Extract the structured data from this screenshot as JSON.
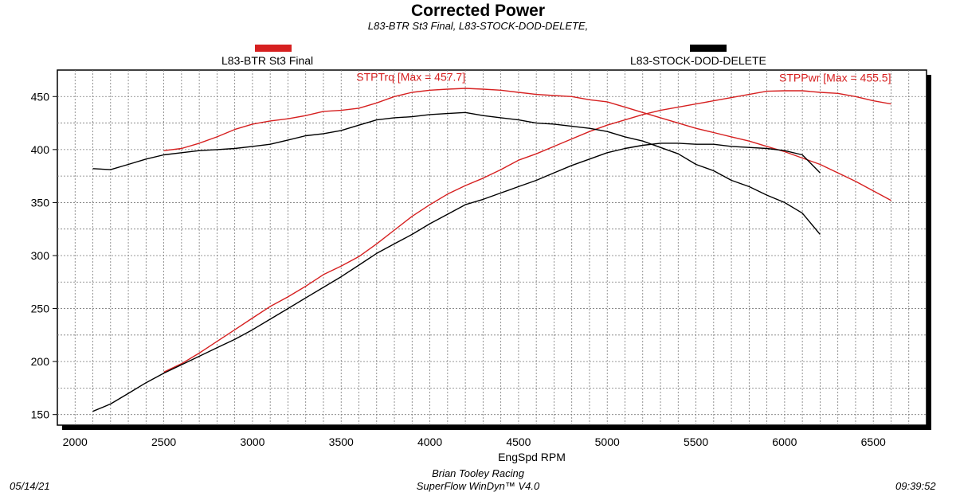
{
  "header": {
    "title": "Corrected Power",
    "subtitle": "L83-BTR St3 Final, L83-STOCK-DOD-DELETE,"
  },
  "footer": {
    "date": "05/14/21",
    "company": "Brian Tooley Racing",
    "software": "SuperFlow WinDyn™  V4.0",
    "time": "09:39:52"
  },
  "colors": {
    "btr": "#d62020",
    "stock": "#000000"
  },
  "chart_data": {
    "type": "line",
    "xlabel": "EngSpd RPM",
    "ylabel": "",
    "xlim": [
      1900,
      6800
    ],
    "ylim": [
      140,
      475
    ],
    "x_ticks": [
      2000,
      2500,
      3000,
      3500,
      4000,
      4500,
      5000,
      5500,
      6000,
      6500
    ],
    "y_ticks": [
      150,
      200,
      250,
      300,
      350,
      400,
      450
    ],
    "grid": true,
    "legend": [
      {
        "name": "L83-BTR St3 Final",
        "color": "#d62020"
      },
      {
        "name": "L83-STOCK-DOD-DELETE",
        "color": "#000000"
      }
    ],
    "annotations": [
      {
        "text": "STPTrq [Max = 457.7]",
        "x": 4200,
        "y": 465,
        "color": "#d62020"
      },
      {
        "text": "STPPwr [Max = 455.5]",
        "x": 6600,
        "y": 464,
        "color": "#d62020"
      }
    ],
    "series": [
      {
        "name": "L83-BTR St3 Final",
        "color": "#d62020",
        "metric": "torque",
        "points": [
          [
            2500,
            399
          ],
          [
            2600,
            401
          ],
          [
            2700,
            406
          ],
          [
            2800,
            412
          ],
          [
            2900,
            419
          ],
          [
            3000,
            424
          ],
          [
            3100,
            427
          ],
          [
            3200,
            429
          ],
          [
            3300,
            432
          ],
          [
            3400,
            436
          ],
          [
            3500,
            437
          ],
          [
            3600,
            439
          ],
          [
            3700,
            444
          ],
          [
            3800,
            450
          ],
          [
            3900,
            454
          ],
          [
            4000,
            456
          ],
          [
            4100,
            457
          ],
          [
            4200,
            457.7
          ],
          [
            4300,
            457
          ],
          [
            4400,
            456
          ],
          [
            4500,
            454
          ],
          [
            4600,
            452
          ],
          [
            4700,
            451
          ],
          [
            4800,
            450
          ],
          [
            4900,
            447
          ],
          [
            5000,
            445
          ],
          [
            5100,
            440
          ],
          [
            5200,
            435
          ],
          [
            5300,
            430
          ],
          [
            5400,
            425
          ],
          [
            5500,
            420
          ],
          [
            5600,
            416
          ],
          [
            5700,
            412
          ],
          [
            5800,
            408
          ],
          [
            5900,
            403
          ],
          [
            6000,
            398
          ],
          [
            6100,
            392
          ],
          [
            6200,
            386
          ],
          [
            6300,
            378
          ],
          [
            6400,
            370
          ],
          [
            6500,
            361
          ],
          [
            6600,
            352
          ]
        ]
      },
      {
        "name": "L83-BTR St3 Final",
        "color": "#d62020",
        "metric": "power",
        "points": [
          [
            2500,
            190
          ],
          [
            2600,
            198
          ],
          [
            2700,
            208
          ],
          [
            2800,
            219
          ],
          [
            2900,
            230
          ],
          [
            3000,
            241
          ],
          [
            3100,
            252
          ],
          [
            3200,
            261
          ],
          [
            3300,
            271
          ],
          [
            3400,
            282
          ],
          [
            3500,
            290
          ],
          [
            3600,
            299
          ],
          [
            3700,
            311
          ],
          [
            3800,
            324
          ],
          [
            3900,
            337
          ],
          [
            4000,
            348
          ],
          [
            4100,
            358
          ],
          [
            4200,
            366
          ],
          [
            4300,
            373
          ],
          [
            4400,
            381
          ],
          [
            4500,
            390
          ],
          [
            4600,
            396
          ],
          [
            4700,
            403
          ],
          [
            4800,
            410
          ],
          [
            4900,
            417
          ],
          [
            5000,
            423
          ],
          [
            5100,
            428
          ],
          [
            5200,
            433
          ],
          [
            5300,
            437
          ],
          [
            5400,
            440
          ],
          [
            5500,
            443
          ],
          [
            5600,
            446
          ],
          [
            5700,
            449
          ],
          [
            5800,
            452
          ],
          [
            5900,
            455
          ],
          [
            6000,
            455.5
          ],
          [
            6100,
            455.5
          ],
          [
            6200,
            454
          ],
          [
            6300,
            453
          ],
          [
            6400,
            450
          ],
          [
            6500,
            446
          ],
          [
            6600,
            443
          ]
        ]
      },
      {
        "name": "L83-STOCK-DOD-DELETE",
        "color": "#000000",
        "metric": "torque",
        "points": [
          [
            2100,
            382
          ],
          [
            2200,
            381
          ],
          [
            2300,
            386
          ],
          [
            2400,
            391
          ],
          [
            2500,
            395
          ],
          [
            2600,
            397
          ],
          [
            2700,
            399
          ],
          [
            2800,
            400
          ],
          [
            2900,
            401
          ],
          [
            3000,
            403
          ],
          [
            3100,
            405
          ],
          [
            3200,
            409
          ],
          [
            3300,
            413
          ],
          [
            3400,
            415
          ],
          [
            3500,
            418
          ],
          [
            3600,
            423
          ],
          [
            3700,
            428
          ],
          [
            3800,
            430
          ],
          [
            3900,
            431
          ],
          [
            4000,
            433
          ],
          [
            4100,
            434
          ],
          [
            4200,
            435
          ],
          [
            4300,
            432
          ],
          [
            4400,
            430
          ],
          [
            4500,
            428
          ],
          [
            4600,
            425
          ],
          [
            4700,
            424
          ],
          [
            4800,
            422
          ],
          [
            4900,
            420
          ],
          [
            5000,
            417
          ],
          [
            5100,
            412
          ],
          [
            5200,
            408
          ],
          [
            5300,
            402
          ],
          [
            5400,
            396
          ],
          [
            5500,
            386
          ],
          [
            5600,
            380
          ],
          [
            5700,
            371
          ],
          [
            5800,
            365
          ],
          [
            5900,
            357
          ],
          [
            6000,
            350
          ],
          [
            6100,
            340
          ],
          [
            6200,
            320
          ]
        ]
      },
      {
        "name": "L83-STOCK-DOD-DELETE",
        "color": "#000000",
        "metric": "power",
        "points": [
          [
            2100,
            153
          ],
          [
            2200,
            160
          ],
          [
            2300,
            170
          ],
          [
            2400,
            180
          ],
          [
            2500,
            189
          ],
          [
            2600,
            197
          ],
          [
            2700,
            205
          ],
          [
            2800,
            213
          ],
          [
            2900,
            221
          ],
          [
            3000,
            230
          ],
          [
            3100,
            240
          ],
          [
            3200,
            250
          ],
          [
            3300,
            260
          ],
          [
            3400,
            270
          ],
          [
            3500,
            280
          ],
          [
            3600,
            291
          ],
          [
            3700,
            302
          ],
          [
            3800,
            311
          ],
          [
            3900,
            320
          ],
          [
            4000,
            330
          ],
          [
            4100,
            339
          ],
          [
            4200,
            348
          ],
          [
            4300,
            353
          ],
          [
            4400,
            359
          ],
          [
            4500,
            365
          ],
          [
            4600,
            371
          ],
          [
            4700,
            378
          ],
          [
            4800,
            385
          ],
          [
            4900,
            391
          ],
          [
            5000,
            397
          ],
          [
            5100,
            401
          ],
          [
            5200,
            404
          ],
          [
            5300,
            406
          ],
          [
            5400,
            406
          ],
          [
            5500,
            405
          ],
          [
            5600,
            405
          ],
          [
            5700,
            403
          ],
          [
            5800,
            402
          ],
          [
            5900,
            401
          ],
          [
            6000,
            399
          ],
          [
            6100,
            395
          ],
          [
            6200,
            378
          ]
        ]
      }
    ]
  }
}
